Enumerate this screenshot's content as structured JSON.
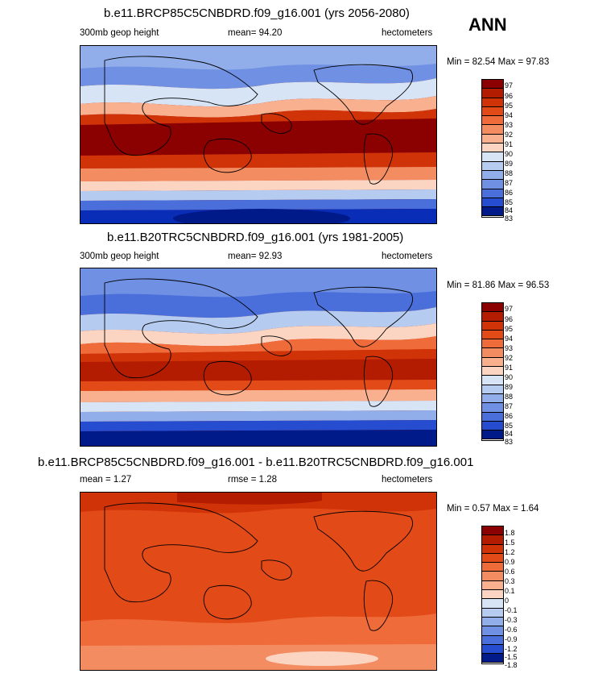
{
  "season": "ANN",
  "panels": [
    {
      "title": "b.e11.BRCP85C5CNBDRD.f09_g16.001 (yrs 2056-2080)",
      "left": "300mb geop height",
      "center": "mean=  94.20",
      "right": "hectometers",
      "minmax": "Min =  82.54 Max =  97.83",
      "levels": [
        "97",
        "96",
        "95",
        "94",
        "93",
        "92",
        "91",
        "90",
        "89",
        "88",
        "87",
        "86",
        "85",
        "84",
        "83"
      ]
    },
    {
      "title": "b.e11.B20TRC5CNBDRD.f09_g16.001 (yrs 1981-2005)",
      "left": "300mb geop height",
      "center": "mean=  92.93",
      "right": "hectometers",
      "minmax": "Min =  81.86 Max =  96.53",
      "levels": [
        "97",
        "96",
        "95",
        "94",
        "93",
        "92",
        "91",
        "90",
        "89",
        "88",
        "87",
        "86",
        "85",
        "84",
        "83"
      ]
    },
    {
      "title": "b.e11.BRCP85C5CNBDRD.f09_g16.001 - b.e11.B20TRC5CNBDRD.f09_g16.001",
      "left": "mean =   1.27",
      "center": "rmse =   1.28",
      "right": "hectometers",
      "minmax": "Min =   0.57 Max =   1.64",
      "levels": [
        "1.8",
        "1.5",
        "1.2",
        "0.9",
        "0.6",
        "0.3",
        "0.1",
        "0",
        "-0.1",
        "-0.3",
        "-0.6",
        "-0.9",
        "-1.2",
        "-1.5",
        "-1.8"
      ]
    }
  ],
  "colors": {
    "scale": [
      "#8b0000",
      "#b31c00",
      "#d03308",
      "#e24a17",
      "#ef6b3a",
      "#f48c61",
      "#f8b08f",
      "#fbd5c2",
      "#ffffff",
      "#d7e4f6",
      "#b6cbf0",
      "#91aeea",
      "#6f90e3",
      "#4a6fdb",
      "#264dcf",
      "#0a2db8",
      "#001a8a"
    ]
  }
}
